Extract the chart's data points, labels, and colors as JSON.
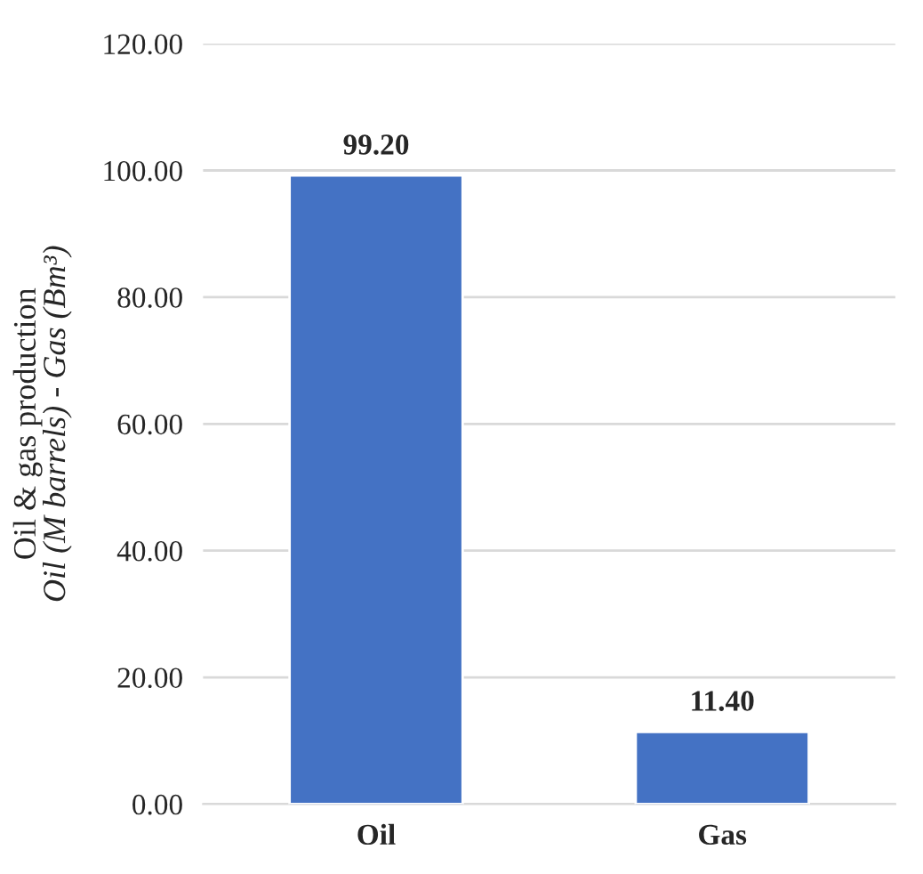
{
  "chart_data": {
    "type": "bar",
    "ylabel": "Oil & gas production\nOil (M barrels) - Gas (Bm³)",
    "categories": [
      "Oil",
      "Gas"
    ],
    "values": [
      99.2,
      11.4
    ],
    "color": "#4472c4",
    "value_labels": [
      "99.20",
      "11.40"
    ],
    "ylim": [
      0,
      120
    ],
    "yticks": [
      {
        "value": 0,
        "label": "0.00"
      },
      {
        "value": 20,
        "label": "20.00"
      },
      {
        "value": 40,
        "label": "40.00"
      },
      {
        "value": 60,
        "label": "60.00"
      },
      {
        "value": 80,
        "label": "80.00"
      },
      {
        "value": 100,
        "label": "100.00"
      },
      {
        "value": 120,
        "label": "120.00"
      }
    ],
    "grid": "y"
  }
}
